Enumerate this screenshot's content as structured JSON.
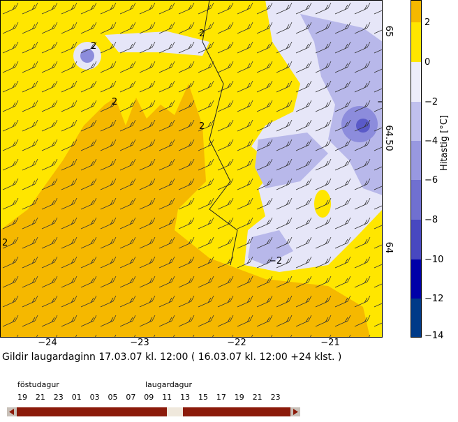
{
  "map": {
    "lon_labels": [
      "−24",
      "−23",
      "−22",
      "−21"
    ],
    "lat_labels": [
      "65",
      "64.50",
      "64"
    ],
    "contour_labels": [
      "2",
      "2",
      "2",
      "2",
      "2",
      "−2",
      "−2"
    ],
    "colorbar": {
      "label": "Hitastig [°C]",
      "ticks": [
        "2",
        "0",
        "−2",
        "−4",
        "−6",
        "−8",
        "−10",
        "−12",
        "−14"
      ]
    }
  },
  "caption": "Gildir laugardaginn 17.03.07 kl. 12:00 ( 16.03.07 kl. 12:00 +24 klst. )",
  "timeline": {
    "days": [
      "föstudagur",
      "laugardagur"
    ],
    "hours": [
      "19",
      "21",
      "23",
      "01",
      "03",
      "05",
      "07",
      "09",
      "11",
      "13",
      "15",
      "17",
      "19",
      "21",
      "23"
    ]
  }
}
